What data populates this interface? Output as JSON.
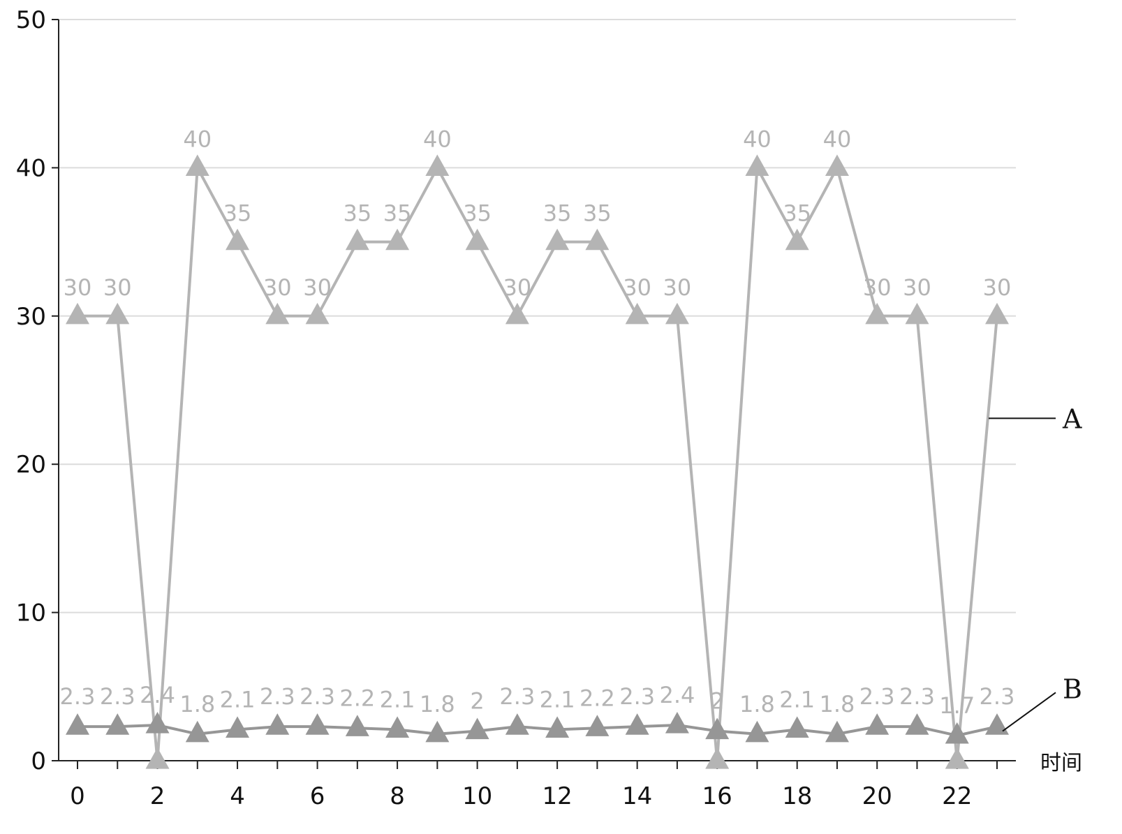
{
  "chart_data": {
    "type": "line",
    "title": "",
    "xlabel": "时间",
    "ylabel": "",
    "xlim": [
      0,
      23
    ],
    "ylim": [
      0,
      50
    ],
    "x_ticks": [
      0,
      2,
      4,
      6,
      8,
      10,
      12,
      14,
      16,
      18,
      20,
      22
    ],
    "y_ticks": [
      0,
      10,
      20,
      30,
      40,
      50
    ],
    "grid": true,
    "x": [
      0,
      1,
      2,
      3,
      4,
      5,
      6,
      7,
      8,
      9,
      10,
      11,
      12,
      13,
      14,
      15,
      16,
      17,
      18,
      19,
      20,
      21,
      22,
      23
    ],
    "series": [
      {
        "name": "A",
        "marker": "triangle",
        "color": "#b4b4b4",
        "values": [
          30,
          30,
          0,
          40,
          35,
          30,
          30,
          35,
          35,
          40,
          35,
          30,
          35,
          35,
          30,
          30,
          0,
          40,
          35,
          40,
          30,
          30,
          0,
          30
        ],
        "labels": [
          "30",
          "30",
          "",
          "40",
          "35",
          "30",
          "30",
          "35",
          "35",
          "40",
          "35",
          "30",
          "35",
          "35",
          "30",
          "30",
          "",
          "40",
          "35",
          "40",
          "30",
          "30",
          "",
          "30"
        ]
      },
      {
        "name": "B",
        "marker": "triangle",
        "color": "#969696",
        "values": [
          2.3,
          2.3,
          2.4,
          1.8,
          2.1,
          2.3,
          2.3,
          2.2,
          2.1,
          1.8,
          2,
          2.3,
          2.1,
          2.2,
          2.3,
          2.4,
          2,
          1.8,
          2.1,
          1.8,
          2.3,
          2.3,
          1.7,
          2.3
        ],
        "labels": [
          "2.3",
          "2.3",
          "2.4",
          "1.8",
          "2.1",
          "2.3",
          "2.3",
          "2.2",
          "2.1",
          "1.8",
          "2",
          "2.3",
          "2.1",
          "2.2",
          "2.3",
          "2.4",
          "2",
          "1.8",
          "2.1",
          "1.8",
          "2.3",
          "2.3",
          "1.7",
          "2.3"
        ]
      }
    ],
    "annotations": [
      {
        "text": "A",
        "series": "A"
      },
      {
        "text": "B",
        "series": "B"
      }
    ]
  }
}
